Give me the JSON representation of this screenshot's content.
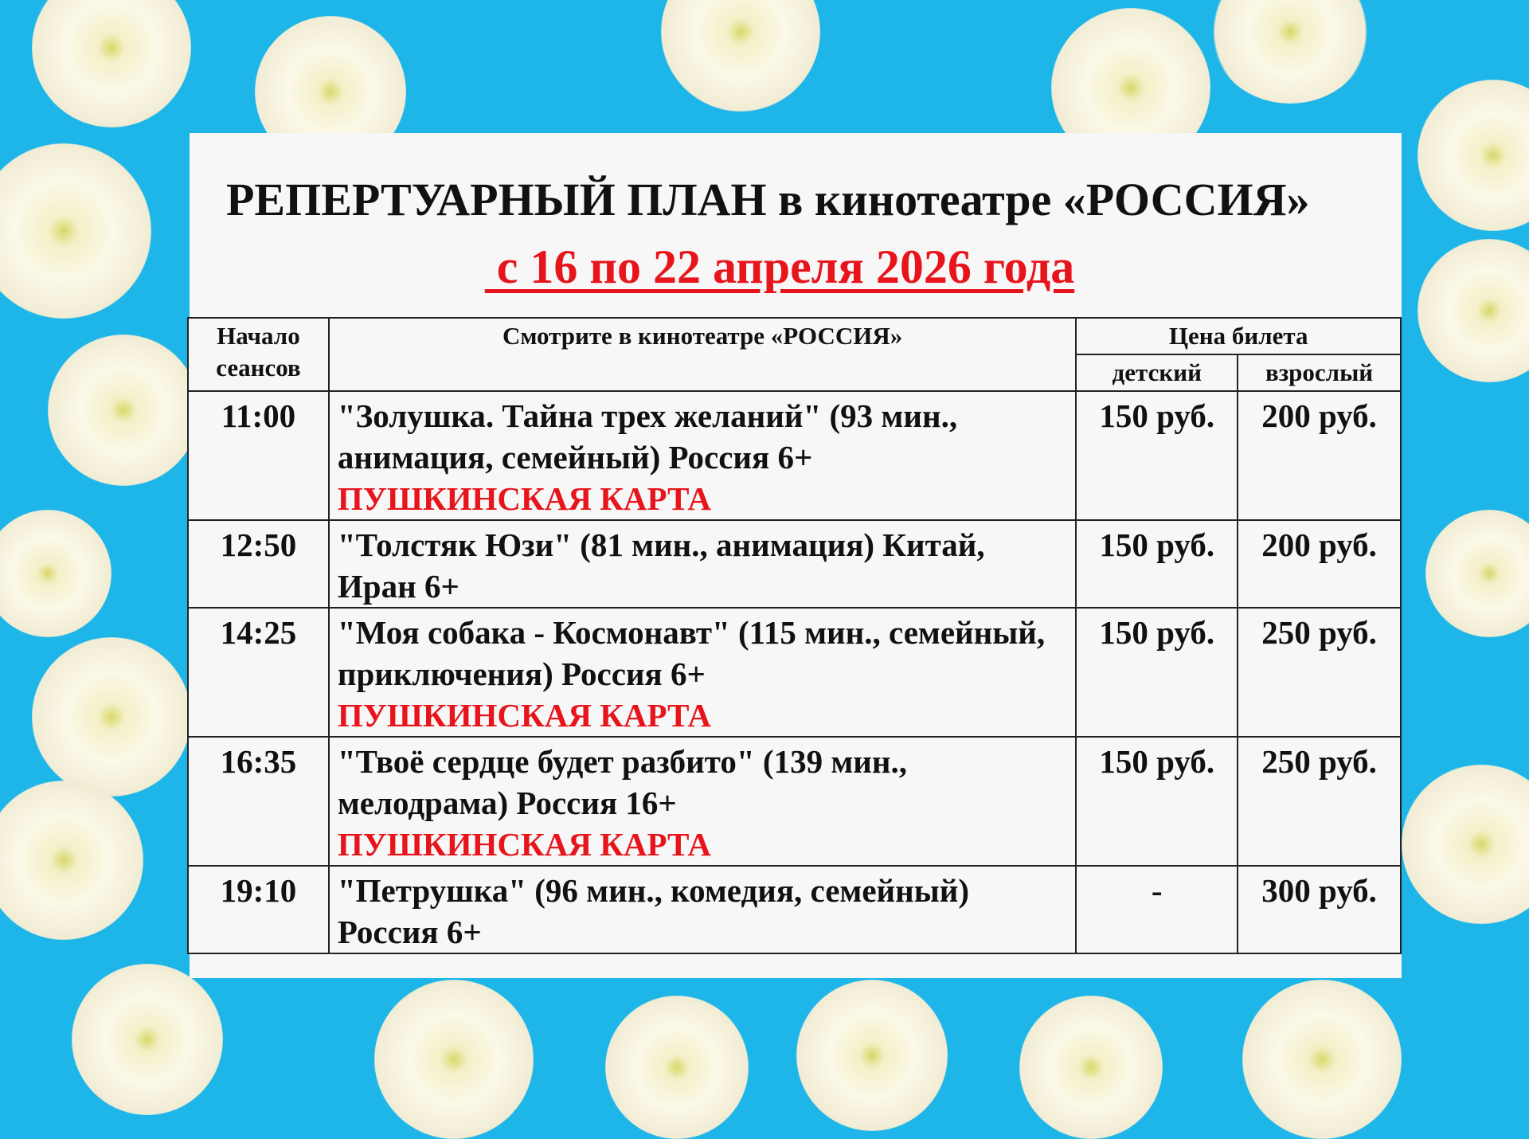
{
  "header": {
    "title": "РЕПЕРТУАРНЫЙ ПЛАН в кинотеатре «РОССИЯ»",
    "date_range": " с 16 по 22 апреля 2026 года"
  },
  "table": {
    "headers": {
      "start": "Начало сеансов",
      "film": "Смотрите в кинотеатре «РОССИЯ»",
      "price": "Цена билета",
      "child": "детский",
      "adult": "взрослый"
    },
    "rows": [
      {
        "time": "11:00",
        "film": "\"Золушка. Тайна трех желаний\" (93 мин., анимация, семейный) Россия 6+",
        "badge": "ПУШКИНСКАЯ КАРТА",
        "child": "150 руб.",
        "adult": "200 руб."
      },
      {
        "time": "12:50",
        "film": "\"Толстяк Юзи\" (81 мин., анимация) Китай, Иран 6+",
        "badge": "",
        "child": "150 руб.",
        "adult": "200 руб."
      },
      {
        "time": "14:25",
        "film": "\"Моя собака - Космонавт\" (115 мин., семейный, приключения) Россия 6+",
        "badge": "ПУШКИНСКАЯ КАРТА",
        "child": "150 руб.",
        "adult": "250 руб."
      },
      {
        "time": "16:35",
        "film": "\"Твоё сердце будет разбито\" (139 мин., мелодрама) Россия 16+",
        "badge": "ПУШКИНСКАЯ КАРТА",
        "child": "150 руб.",
        "adult": "250 руб."
      },
      {
        "time": "19:10",
        "film": "\"Петрушка\" (96 мин., комедия, семейный) Россия 6+",
        "badge": "",
        "child": "-",
        "adult": "300 руб."
      }
    ]
  },
  "colors": {
    "background": "#1eb6e8",
    "accent_red": "#e8141b",
    "text": "#111111"
  }
}
